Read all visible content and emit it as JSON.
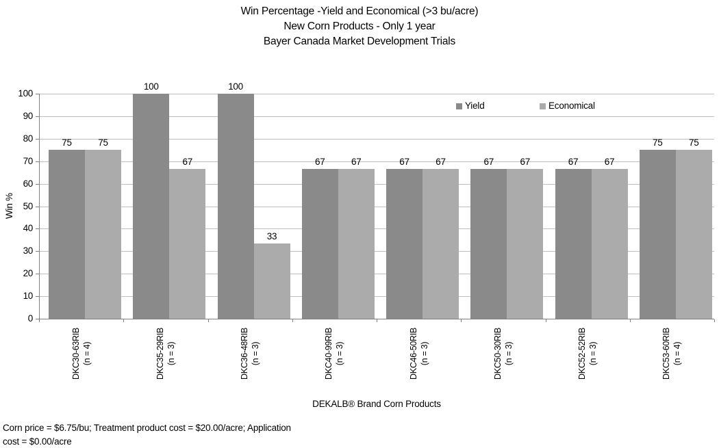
{
  "title": {
    "line1": "Win Percentage -Yield and Economical (>3 bu/acre)",
    "line2": "New Corn Products - Only 1 year",
    "line3": "Bayer Canada Market Development Trials"
  },
  "chart_data": {
    "type": "bar",
    "title": "Win Percentage -Yield and Economical (>3 bu/acre) New Corn Products - Only 1 year Bayer Canada Market Development Trials",
    "xlabel": "DEKALB® Brand Corn Products",
    "ylabel": "Win %",
    "ylim": [
      0,
      100
    ],
    "yticks": [
      0,
      10,
      20,
      30,
      40,
      50,
      60,
      70,
      80,
      90,
      100
    ],
    "grid": true,
    "legend_position": "inside-top-right",
    "categories": [
      "DKC30-63RIB",
      "DKC35-29RIB",
      "DKC36-48RIB",
      "DKC40-99RIB",
      "DKC46-50RIB",
      "DKC50-30RIB",
      "DKC52-52RIB",
      "DKC53-60RIB"
    ],
    "category_sublabels": [
      "(n = 4)",
      "(n = 3)",
      "(n = 3)",
      "(n = 3)",
      "(n = 3)",
      "(n = 3)",
      "(n = 3)",
      "(n = 4)"
    ],
    "series": [
      {
        "name": "Yield",
        "color": "#8A8A8A",
        "values": [
          75,
          100,
          100,
          66.67,
          66.67,
          66.67,
          66.67,
          75
        ],
        "labels": [
          "75",
          "100",
          "100",
          "67",
          "67",
          "67",
          "67",
          "75"
        ]
      },
      {
        "name": "Economical",
        "color": "#ABABAB",
        "values": [
          75,
          66.67,
          33.33,
          66.67,
          66.67,
          66.67,
          66.67,
          75
        ],
        "labels": [
          "75",
          "67",
          "33",
          "67",
          "67",
          "67",
          "67",
          "75"
        ]
      }
    ],
    "colors": {
      "gridline": "#BFBFBF",
      "axis": "#808080",
      "text": "#000000",
      "background": "#FFFFFF"
    }
  },
  "footnote": {
    "line1": "Corn price = $6.75/bu; Treatment product cost = $20.00/acre; Application",
    "line2": "cost = $0.00/acre"
  }
}
